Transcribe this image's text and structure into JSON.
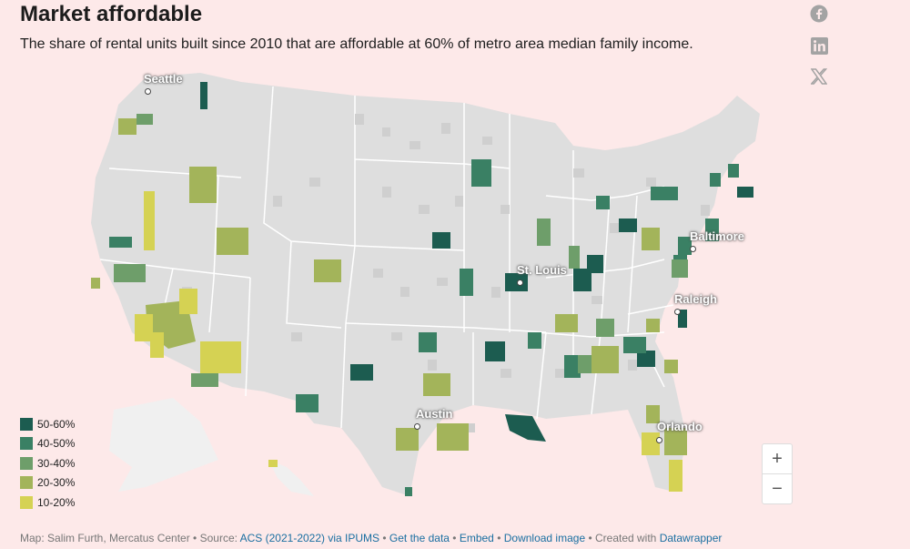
{
  "header": {
    "title": "Market affordable",
    "subtitle": "The share of rental units built since 2010 that are affordable at 60% of metro area median family income."
  },
  "share": [
    {
      "icon": "facebook-icon"
    },
    {
      "icon": "linkedin-icon"
    },
    {
      "icon": "x-icon"
    }
  ],
  "cities": [
    {
      "name": "Seattle"
    },
    {
      "name": "St. Louis"
    },
    {
      "name": "Baltimore"
    },
    {
      "name": "Raleigh"
    },
    {
      "name": "Austin"
    },
    {
      "name": "Orlando"
    }
  ],
  "legend": {
    "items": [
      {
        "label": "50-60%",
        "color": "#1c5c50"
      },
      {
        "label": "40-50%",
        "color": "#3a8064"
      },
      {
        "label": "30-40%",
        "color": "#6e9e6a"
      },
      {
        "label": "20-30%",
        "color": "#a3b45a"
      },
      {
        "label": "10-20%",
        "color": "#d5d253"
      }
    ]
  },
  "colors": {
    "background": "#fde9e9",
    "base_county": "#dedede",
    "nodata_county": "#f0f0f0",
    "state_border": "#ffffff"
  },
  "zoom": {
    "plus": "+",
    "minus": "−"
  },
  "footer": {
    "credit": "Map: Salim Furth, Mercatus Center • Source: ",
    "source_link": "ACS (2021-2022) via IPUMS",
    "sep1": " • ",
    "get_data": "Get the data",
    "sep2": " • ",
    "embed": "Embed",
    "sep3": " • ",
    "download": "Download image",
    "sep4": " • Created with ",
    "datawrapper": "Datawrapper"
  }
}
